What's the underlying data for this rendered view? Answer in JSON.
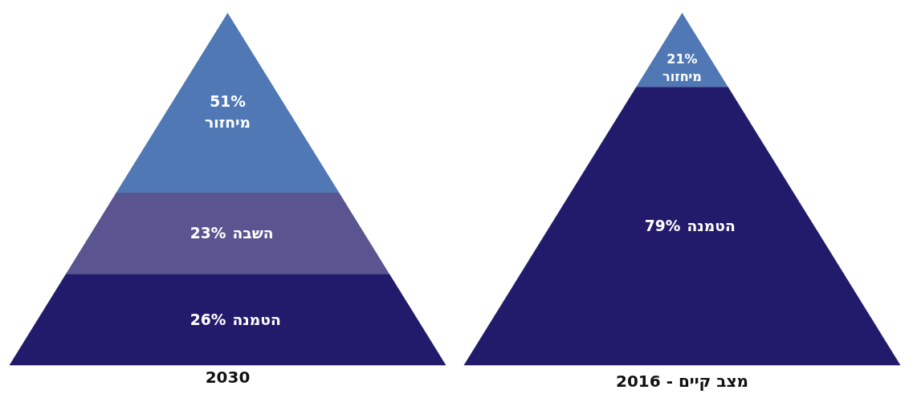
{
  "chart_data": [
    {
      "type": "other",
      "title": "2030",
      "categories": [
        "מיחזור",
        "השבה",
        "הטמנה"
      ],
      "values": [
        51,
        23,
        26
      ],
      "value_labels": [
        "51%",
        "23%",
        "26%"
      ],
      "colors": [
        "#4f78b5",
        "#5a5490",
        "#221b6b"
      ]
    },
    {
      "type": "other",
      "title": "מצב קיים - 2016",
      "categories": [
        "מיחזור",
        "הטמנה"
      ],
      "values": [
        21,
        79
      ],
      "value_labels": [
        "21%",
        "79%"
      ],
      "colors": [
        "#4f78b5",
        "#221b6b"
      ]
    }
  ]
}
